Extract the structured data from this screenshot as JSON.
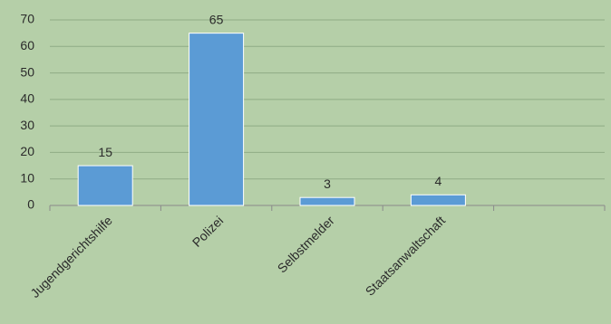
{
  "chart_data": {
    "type": "bar",
    "categories": [
      "Jugendgerichtshilfe",
      "Polizei",
      "Selbstmelder",
      "Staatsanwaltschaft",
      null
    ],
    "values": [
      15,
      65,
      3,
      4,
      null
    ],
    "color": "#5b9bd5",
    "ylim": [
      0,
      70
    ],
    "yticks": [
      0,
      10,
      20,
      30,
      40,
      50,
      60,
      70
    ],
    "grid": true
  }
}
